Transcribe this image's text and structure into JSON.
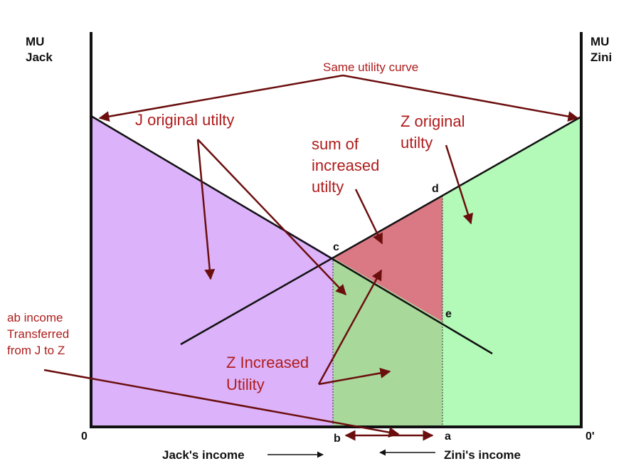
{
  "axes": {
    "left_label_line1": "MU",
    "left_label_line2": "Jack",
    "right_label_line1": "MU",
    "right_label_line2": "Zini",
    "origin_left": "0",
    "origin_right": "0'",
    "x_label_left": "Jack's income",
    "x_label_right": "Zini's income"
  },
  "points": {
    "c": "c",
    "d": "d",
    "e": "e",
    "b": "b",
    "a": "a"
  },
  "annotations": {
    "same_utility_curve": "Same utility curve",
    "j_original": "J original utilty",
    "z_original_line1": "Z original",
    "z_original_line2": "utilty",
    "sum_line1": "sum of",
    "sum_line2": "increased",
    "sum_line3": "utilty",
    "z_increased_line1": "Z Increased",
    "z_increased_line2": "Utility",
    "ab_line1": "ab income",
    "ab_line2": "Transferred",
    "ab_line3": "from J to Z"
  },
  "colors": {
    "jack_region": "#dcb3fa",
    "zini_region": "#b3fab8",
    "z_increased_region": "#a8d99a",
    "sum_increased_region": "#da7883",
    "annotation_text": "#b01c1c",
    "arrow": "#6b0e0e"
  }
}
